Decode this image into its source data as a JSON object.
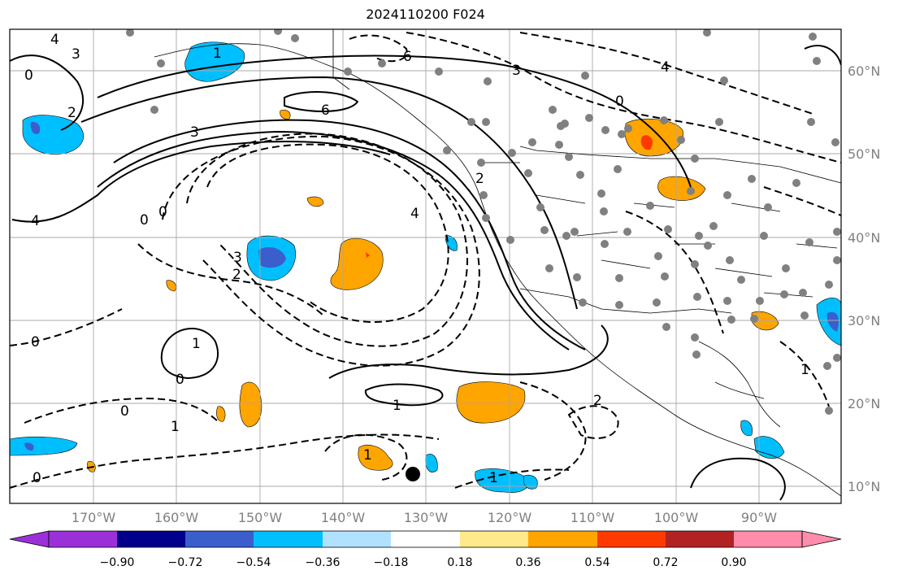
{
  "title": "2024110200 F024",
  "lat_labels": [
    "60°N",
    "50°N",
    "40°N",
    "30°N",
    "20°N",
    "10°N"
  ],
  "lon_labels": [
    "170°W",
    "160°W",
    "150°W",
    "140°W",
    "130°W",
    "120°W",
    "110°W",
    "100°W",
    "90°W"
  ],
  "colorbar": {
    "ticks": [
      "−0.90",
      "−0.72",
      "−0.54",
      "−0.36",
      "−0.18",
      "0.18",
      "0.36",
      "0.54",
      "0.72",
      "0.90"
    ],
    "colors": [
      "#9b30d9",
      "#00008b",
      "#3a5fcd",
      "#00bfff",
      "#b0e2ff",
      "#ffffff",
      "#ffe98a",
      "#ffa500",
      "#ff3a00",
      "#b22222",
      "#ff8caa"
    ]
  },
  "contour_labels": [
    "4",
    "3",
    "0",
    "2",
    "1",
    "6",
    "3",
    "2",
    "1",
    "0",
    "2",
    "1",
    "4",
    "3",
    "0",
    "6",
    "4",
    "3",
    "0",
    "4",
    "0",
    "1",
    "0",
    "1",
    "0",
    "1",
    "2",
    "1",
    "0"
  ],
  "marker": "hurricane-center-dot"
}
